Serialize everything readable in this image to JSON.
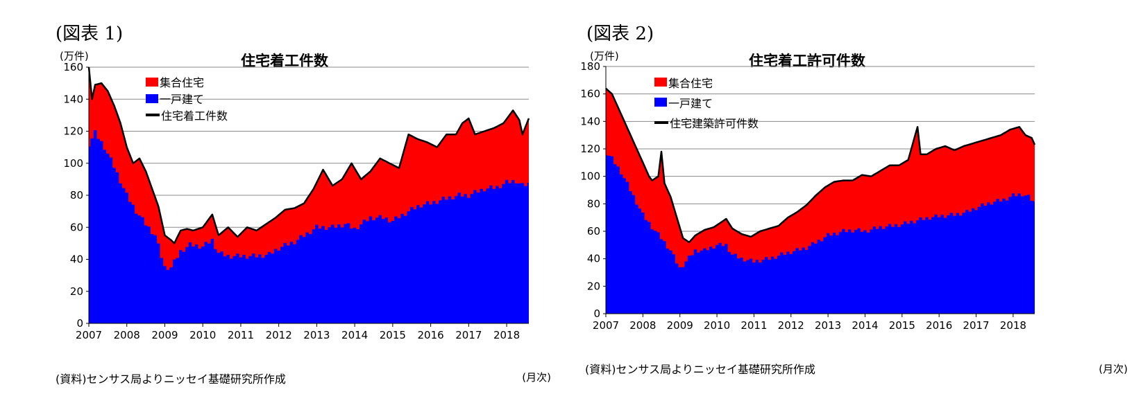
{
  "charts": [
    {
      "figure_label": "(図表 1)",
      "unit": "(万件)",
      "title": "住宅着工件数",
      "source": "(資料)センサス局よりニッセイ基礎研究所作成",
      "x_unit": "(月次)"
    },
    {
      "figure_label": "(図表 2)",
      "unit": "(万件)",
      "title": "住宅着工許可件数",
      "source": "(資料)センサス局よりニッセイ基礎研究所作成",
      "x_unit": "(月次)"
    }
  ],
  "chart_data": [
    {
      "type": "area",
      "title": "住宅着工件数",
      "ylabel": "(万件)",
      "xlabel": "(月次)",
      "ylim": [
        0,
        160
      ],
      "yticks": [
        0,
        20,
        40,
        60,
        80,
        100,
        120,
        140,
        160
      ],
      "xtick_labels": [
        "2007",
        "2008",
        "2009",
        "2010",
        "2011",
        "2012",
        "2013",
        "2014",
        "2015",
        "2016",
        "2017",
        "2018"
      ],
      "x_range": [
        "2007-01",
        "2018-08"
      ],
      "grid": true,
      "legend_position": "top-left",
      "stacked": true,
      "series": [
        {
          "name": "集合住宅",
          "color": "#ff0000",
          "type": "stacked-area"
        },
        {
          "name": "一戸建て",
          "color": "#0000ff",
          "type": "area",
          "points": [
            [
              "2007-01",
              112
            ],
            [
              "2007-03",
              119
            ],
            [
              "2007-06",
              110
            ],
            [
              "2007-09",
              98
            ],
            [
              "2008-01",
              80
            ],
            [
              "2008-04",
              70
            ],
            [
              "2008-07",
              62
            ],
            [
              "2008-10",
              55
            ],
            [
              "2009-01",
              35
            ],
            [
              "2009-03",
              35
            ],
            [
              "2009-06",
              45
            ],
            [
              "2009-09",
              49
            ],
            [
              "2010-01",
              48
            ],
            [
              "2010-04",
              52
            ],
            [
              "2010-06",
              44
            ],
            [
              "2010-09",
              42
            ],
            [
              "2011-01",
              42
            ],
            [
              "2011-06",
              42
            ],
            [
              "2011-10",
              43
            ],
            [
              "2012-01",
              47
            ],
            [
              "2012-06",
              51
            ],
            [
              "2012-10",
              56
            ],
            [
              "2013-01",
              60
            ],
            [
              "2013-06",
              60
            ],
            [
              "2013-10",
              62
            ],
            [
              "2014-01",
              59
            ],
            [
              "2014-06",
              66
            ],
            [
              "2014-10",
              66
            ],
            [
              "2015-01",
              64
            ],
            [
              "2015-06",
              70
            ],
            [
              "2015-10",
              74
            ],
            [
              "2016-01",
              75
            ],
            [
              "2016-06",
              78
            ],
            [
              "2016-10",
              80
            ],
            [
              "2017-01",
              80
            ],
            [
              "2017-06",
              84
            ],
            [
              "2017-10",
              85
            ],
            [
              "2018-01",
              88
            ],
            [
              "2018-04",
              89
            ],
            [
              "2018-06",
              86
            ],
            [
              "2018-08",
              87
            ]
          ]
        },
        {
          "name": "住宅着工件数",
          "color": "#000000",
          "type": "line",
          "points": [
            [
              "2007-01",
              160
            ],
            [
              "2007-02",
              140
            ],
            [
              "2007-03",
              149
            ],
            [
              "2007-05",
              150
            ],
            [
              "2007-07",
              145
            ],
            [
              "2007-09",
              136
            ],
            [
              "2007-11",
              125
            ],
            [
              "2008-01",
              110
            ],
            [
              "2008-03",
              100
            ],
            [
              "2008-05",
              103
            ],
            [
              "2008-07",
              95
            ],
            [
              "2008-09",
              84
            ],
            [
              "2008-11",
              73
            ],
            [
              "2009-01",
              55
            ],
            [
              "2009-03",
              52
            ],
            [
              "2009-04",
              50
            ],
            [
              "2009-06",
              58
            ],
            [
              "2009-08",
              59
            ],
            [
              "2009-10",
              58
            ],
            [
              "2010-01",
              60
            ],
            [
              "2010-04",
              68
            ],
            [
              "2010-06",
              55
            ],
            [
              "2010-09",
              60
            ],
            [
              "2010-12",
              54
            ],
            [
              "2011-03",
              60
            ],
            [
              "2011-06",
              58
            ],
            [
              "2011-09",
              62
            ],
            [
              "2011-12",
              66
            ],
            [
              "2012-03",
              71
            ],
            [
              "2012-06",
              72
            ],
            [
              "2012-09",
              75
            ],
            [
              "2012-12",
              84
            ],
            [
              "2013-03",
              96
            ],
            [
              "2013-06",
              86
            ],
            [
              "2013-09",
              90
            ],
            [
              "2013-12",
              100
            ],
            [
              "2014-03",
              90
            ],
            [
              "2014-06",
              95
            ],
            [
              "2014-09",
              103
            ],
            [
              "2014-12",
              100
            ],
            [
              "2015-03",
              97
            ],
            [
              "2015-06",
              118
            ],
            [
              "2015-09",
              115
            ],
            [
              "2015-12",
              113
            ],
            [
              "2016-03",
              110
            ],
            [
              "2016-06",
              118
            ],
            [
              "2016-09",
              118
            ],
            [
              "2016-11",
              125
            ],
            [
              "2017-01",
              128
            ],
            [
              "2017-03",
              118
            ],
            [
              "2017-06",
              120
            ],
            [
              "2017-09",
              122
            ],
            [
              "2017-12",
              125
            ],
            [
              "2018-03",
              133
            ],
            [
              "2018-05",
              127
            ],
            [
              "2018-06",
              118
            ],
            [
              "2018-08",
              128
            ]
          ]
        }
      ]
    },
    {
      "type": "area",
      "title": "住宅着工許可件数",
      "ylabel": "(万件)",
      "xlabel": "(月次)",
      "ylim": [
        0,
        180
      ],
      "yticks": [
        0,
        20,
        40,
        60,
        80,
        100,
        120,
        140,
        160,
        180
      ],
      "xtick_labels": [
        "2007",
        "2008",
        "2009",
        "2010",
        "2011",
        "2012",
        "2013",
        "2014",
        "2015",
        "2016",
        "2017",
        "2018"
      ],
      "x_range": [
        "2007-01",
        "2018-08"
      ],
      "grid": true,
      "legend_position": "top-left",
      "stacked": true,
      "series": [
        {
          "name": "集合住宅",
          "color": "#ff0000",
          "type": "stacked-area"
        },
        {
          "name": "一戸建て",
          "color": "#0000ff",
          "type": "area",
          "points": [
            [
              "2007-01",
              117
            ],
            [
              "2007-03",
              113
            ],
            [
              "2007-06",
              103
            ],
            [
              "2007-09",
              90
            ],
            [
              "2008-01",
              72
            ],
            [
              "2008-04",
              63
            ],
            [
              "2008-07",
              55
            ],
            [
              "2008-10",
              46
            ],
            [
              "2009-01",
              33
            ],
            [
              "2009-03",
              38
            ],
            [
              "2009-06",
              46
            ],
            [
              "2009-09",
              46
            ],
            [
              "2010-01",
              50
            ],
            [
              "2010-04",
              50
            ],
            [
              "2010-06",
              43
            ],
            [
              "2010-09",
              40
            ],
            [
              "2011-01",
              38
            ],
            [
              "2011-06",
              40
            ],
            [
              "2011-10",
              43
            ],
            [
              "2012-01",
              45
            ],
            [
              "2012-06",
              48
            ],
            [
              "2012-10",
              53
            ],
            [
              "2013-01",
              57
            ],
            [
              "2013-06",
              60
            ],
            [
              "2013-10",
              61
            ],
            [
              "2014-01",
              60
            ],
            [
              "2014-06",
              63
            ],
            [
              "2014-10",
              64
            ],
            [
              "2015-01",
              65
            ],
            [
              "2015-06",
              68
            ],
            [
              "2015-10",
              70
            ],
            [
              "2016-01",
              71
            ],
            [
              "2016-06",
              72
            ],
            [
              "2016-10",
              74
            ],
            [
              "2017-01",
              77
            ],
            [
              "2017-06",
              81
            ],
            [
              "2017-10",
              83
            ],
            [
              "2018-01",
              86
            ],
            [
              "2018-04",
              87
            ],
            [
              "2018-06",
              85
            ],
            [
              "2018-08",
              81
            ]
          ]
        },
        {
          "name": "住宅建築許可件数",
          "color": "#000000",
          "type": "line",
          "points": [
            [
              "2007-01",
              164
            ],
            [
              "2007-03",
              160
            ],
            [
              "2007-05",
              150
            ],
            [
              "2007-07",
              140
            ],
            [
              "2007-09",
              130
            ],
            [
              "2007-11",
              120
            ],
            [
              "2008-01",
              110
            ],
            [
              "2008-03",
              100
            ],
            [
              "2008-04",
              97
            ],
            [
              "2008-06",
              100
            ],
            [
              "2008-07",
              118
            ],
            [
              "2008-08",
              95
            ],
            [
              "2008-10",
              85
            ],
            [
              "2008-12",
              70
            ],
            [
              "2009-02",
              55
            ],
            [
              "2009-04",
              52
            ],
            [
              "2009-06",
              57
            ],
            [
              "2009-09",
              61
            ],
            [
              "2009-12",
              63
            ],
            [
              "2010-04",
              69
            ],
            [
              "2010-06",
              62
            ],
            [
              "2010-09",
              58
            ],
            [
              "2010-12",
              56
            ],
            [
              "2011-03",
              60
            ],
            [
              "2011-06",
              62
            ],
            [
              "2011-09",
              64
            ],
            [
              "2011-12",
              70
            ],
            [
              "2012-03",
              74
            ],
            [
              "2012-06",
              79
            ],
            [
              "2012-09",
              86
            ],
            [
              "2012-12",
              92
            ],
            [
              "2013-03",
              96
            ],
            [
              "2013-06",
              97
            ],
            [
              "2013-09",
              97
            ],
            [
              "2013-12",
              101
            ],
            [
              "2014-03",
              100
            ],
            [
              "2014-06",
              104
            ],
            [
              "2014-09",
              108
            ],
            [
              "2014-12",
              108
            ],
            [
              "2015-03",
              112
            ],
            [
              "2015-06",
              136
            ],
            [
              "2015-07",
              116
            ],
            [
              "2015-09",
              116
            ],
            [
              "2015-12",
              120
            ],
            [
              "2016-03",
              122
            ],
            [
              "2016-06",
              119
            ],
            [
              "2016-09",
              122
            ],
            [
              "2016-12",
              124
            ],
            [
              "2017-03",
              126
            ],
            [
              "2017-06",
              128
            ],
            [
              "2017-09",
              130
            ],
            [
              "2017-12",
              134
            ],
            [
              "2018-03",
              136
            ],
            [
              "2018-05",
              130
            ],
            [
              "2018-07",
              128
            ],
            [
              "2018-08",
              123
            ]
          ]
        }
      ]
    }
  ]
}
